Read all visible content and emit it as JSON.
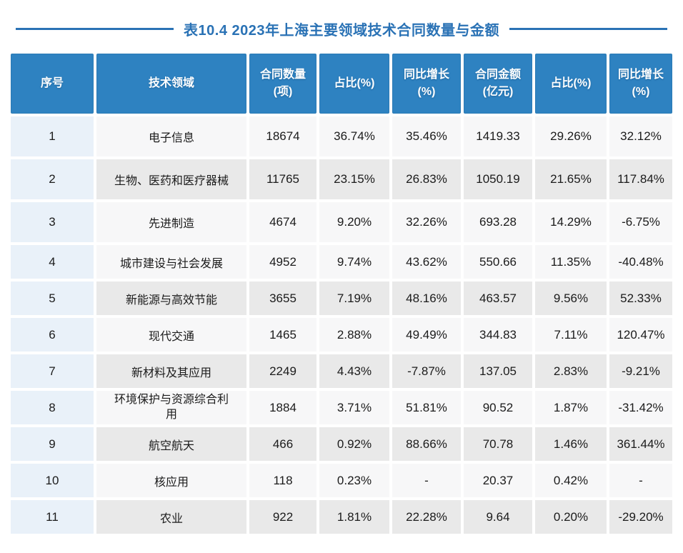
{
  "title": "表10.4 2023年上海主要领域技术合同数量与金额",
  "colors": {
    "header_bg": "#2e82c1",
    "title_blue": "#2a72b5",
    "index_column_bg": "#e9f1f9",
    "row_light_bg": "#f7f7f8",
    "row_dark_bg": "#e9e9e9",
    "text": "#1b1b1b"
  },
  "table": {
    "headers": [
      "序号",
      "技术领域",
      "合同数量\n(项)",
      "占比(%)",
      "同比增长\n(%)",
      "合同金额\n(亿元)",
      "占比(%)",
      "同比增长\n(%)"
    ],
    "rows": [
      [
        "1",
        "电子信息",
        "18674",
        "36.74%",
        "35.46%",
        "1419.33",
        "29.26%",
        "32.12%"
      ],
      [
        "2",
        "生物、医药和医疗器械",
        "11765",
        "23.15%",
        "26.83%",
        "1050.19",
        "21.65%",
        "117.84%"
      ],
      [
        "3",
        "先进制造",
        "4674",
        "9.20%",
        "32.26%",
        "693.28",
        "14.29%",
        "-6.75%"
      ],
      [
        "4",
        "城市建设与社会发展",
        "4952",
        "9.74%",
        "43.62%",
        "550.66",
        "11.35%",
        "-40.48%"
      ],
      [
        "5",
        "新能源与高效节能",
        "3655",
        "7.19%",
        "48.16%",
        "463.57",
        "9.56%",
        "52.33%"
      ],
      [
        "6",
        "现代交通",
        "1465",
        "2.88%",
        "49.49%",
        "344.83",
        "7.11%",
        "120.47%"
      ],
      [
        "7",
        "新材料及其应用",
        "2249",
        "4.43%",
        "-7.87%",
        "137.05",
        "2.83%",
        "-9.21%"
      ],
      [
        "8",
        "环境保护与资源综合利用",
        "1884",
        "3.71%",
        "51.81%",
        "90.52",
        "1.87%",
        "-31.42%"
      ],
      [
        "9",
        "航空航天",
        "466",
        "0.92%",
        "88.66%",
        "70.78",
        "1.46%",
        "361.44%"
      ],
      [
        "10",
        "核应用",
        "118",
        "0.23%",
        "-",
        "20.37",
        "0.42%",
        "-"
      ],
      [
        "11",
        "农业",
        "922",
        "1.81%",
        "22.28%",
        "9.64",
        "0.20%",
        "-29.20%"
      ]
    ],
    "tall_rows": [
      1,
      2,
      3
    ],
    "dark_rows": [
      2,
      5,
      7,
      9,
      11
    ]
  }
}
